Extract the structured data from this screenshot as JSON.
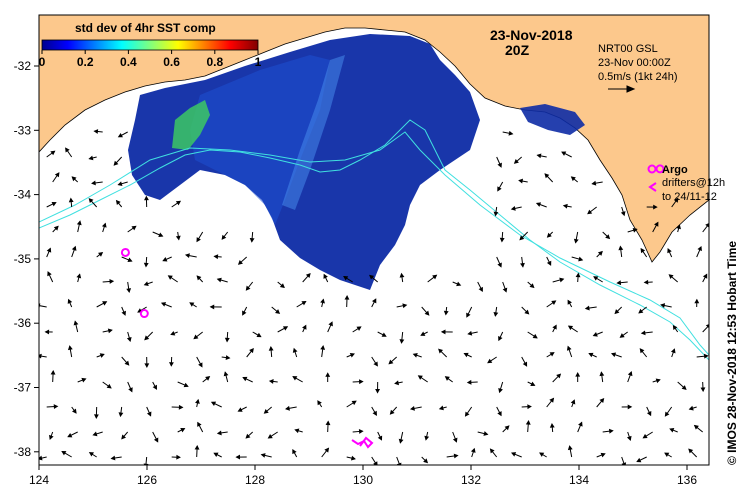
{
  "map": {
    "date_title": "23-Nov-2018",
    "time_title": "20Z",
    "colorbar": {
      "title": "std dev of 4hr SST comp",
      "ticks": [
        "0",
        "0.2",
        "0.4",
        "0.6",
        "0.8",
        "1"
      ],
      "min": 0,
      "max": 1
    },
    "current_info": {
      "line1": "NRT00 GSL",
      "line2": "23-Nov 00:00Z",
      "line3": "0.5m/s (1kt 24h)"
    },
    "legend": {
      "argo_label": "Argo",
      "drifters_line1": "drifters@12h",
      "drifters_line2": "to 24/11-12"
    },
    "side_label": "© IMOS 28-Nov-2018 12:53 Hobart Time",
    "lon_ticks": [
      "124",
      "126",
      "128",
      "130",
      "132",
      "134",
      "136"
    ],
    "lat_ticks": [
      "-32",
      "-33",
      "-34",
      "-35",
      "-36",
      "-37",
      "-38"
    ],
    "lon_range": [
      124,
      136.5
    ],
    "lat_range": [
      -38.3,
      -31.3
    ],
    "argo_floats": [
      {
        "lon": 125.6,
        "lat": -34.9
      },
      {
        "lon": 125.95,
        "lat": -35.85
      },
      {
        "lon": 135.5,
        "lat": -33.6
      }
    ],
    "colors": {
      "land": "#fcc88c",
      "ocean": "#ffffff",
      "sst_low": "#0d2ba5",
      "sst_mid": "#1e50d2",
      "sst_high": "#3cc864",
      "track": "#40e0e0",
      "argo": "#ff00ff",
      "arrows": "#000000"
    }
  }
}
